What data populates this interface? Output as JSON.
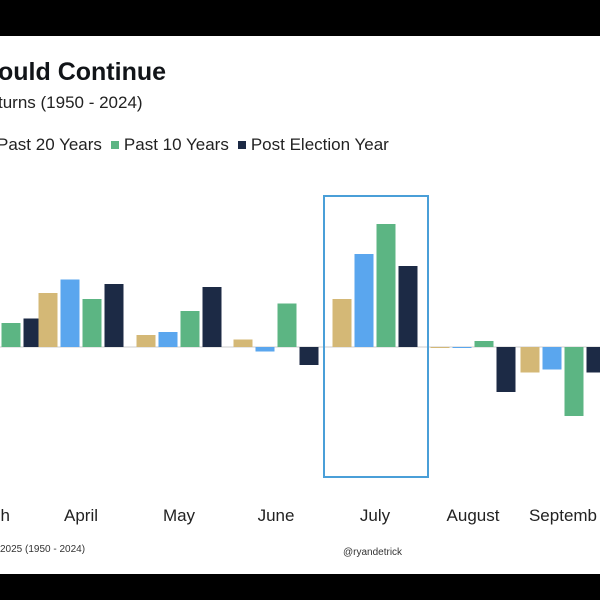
{
  "header": {
    "title": "ould Continue",
    "subtitle": "turns (1950 - 2024)"
  },
  "footer": {
    "source": "2025 (1950 - 2024)",
    "handle": "@ryandetrick"
  },
  "colors": {
    "background": "#ffffff",
    "frame": "#000000",
    "highlight_box": "#4a9fd8",
    "zero_line": "#cccccc"
  },
  "chart_data": {
    "type": "bar",
    "title": "ould Continue",
    "subtitle": "turns (1950 - 2024)",
    "xlabel": "",
    "ylabel": "",
    "grid": false,
    "legend_position": "top-left",
    "categories": [
      "h",
      "April",
      "May",
      "June",
      "July",
      "August",
      "Septemb"
    ],
    "highlighted_category": "July",
    "ylim": [
      -4.5,
      6.5
    ],
    "series": [
      {
        "name": "",
        "color": "#d4b876",
        "values": [
          null,
          1.8,
          0.4,
          0.25,
          1.6,
          0.0,
          -0.85
        ]
      },
      {
        "name": "Past 20 Years",
        "color": "#5aa6ee",
        "values": [
          null,
          2.25,
          0.5,
          -0.15,
          3.1,
          0.0,
          -0.75
        ]
      },
      {
        "name": "Past 10 Years",
        "color": "#5cb583",
        "values": [
          0.8,
          1.6,
          1.2,
          1.45,
          4.1,
          0.2,
          -2.3
        ]
      },
      {
        "name": "Post Election Year",
        "color": "#1c2a45",
        "values": [
          0.95,
          2.1,
          2.0,
          -0.6,
          2.7,
          -1.5,
          -0.85
        ]
      }
    ]
  }
}
